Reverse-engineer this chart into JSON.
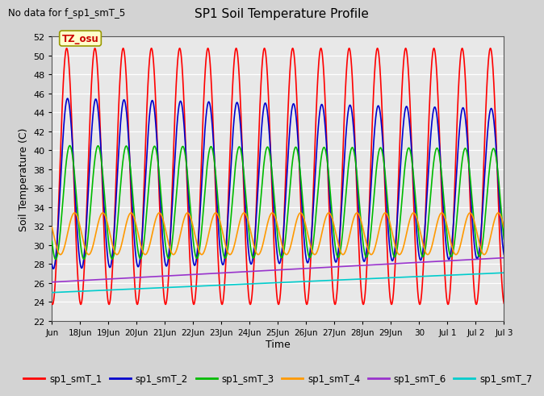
{
  "title": "SP1 Soil Temperature Profile",
  "xlabel": "Time",
  "ylabel": "Soil Temperature (C)",
  "ylim": [
    22,
    52
  ],
  "yticks": [
    22,
    24,
    26,
    28,
    30,
    32,
    34,
    36,
    38,
    40,
    42,
    44,
    46,
    48,
    50,
    52
  ],
  "no_data_text": "No data for f_sp1_smT_5",
  "tz_label": "TZ_osu",
  "background_color": "#d3d3d3",
  "plot_bg_color": "#e8e8e8",
  "series": [
    {
      "name": "sp1_smT_1",
      "color": "#ff0000",
      "mean": 37.25,
      "amp": 13.5,
      "phase": 0.27,
      "trend": 0.0,
      "amp_trend": 0.0
    },
    {
      "name": "sp1_smT_2",
      "color": "#0000cc",
      "mean": 36.5,
      "amp": 9.0,
      "phase": 0.3,
      "trend": 0.0,
      "amp_trend": -0.07
    },
    {
      "name": "sp1_smT_3",
      "color": "#00bb00",
      "mean": 34.5,
      "amp": 6.0,
      "phase": 0.38,
      "trend": 0.0,
      "amp_trend": -0.02
    },
    {
      "name": "sp1_smT_4",
      "color": "#ff9900",
      "mean": 31.2,
      "amp": 2.2,
      "phase": 0.55,
      "trend": 0.0,
      "amp_trend": 0.0
    },
    {
      "name": "sp1_smT_6",
      "color": "#9933cc",
      "mean": 26.1,
      "amp": 0.0,
      "phase": 0.0,
      "trend": 0.16,
      "amp_trend": 0.0
    },
    {
      "name": "sp1_smT_7",
      "color": "#00cccc",
      "mean": 25.0,
      "amp": 0.0,
      "phase": 0.0,
      "trend": 0.13,
      "amp_trend": 0.0
    }
  ],
  "x_end": 16.0,
  "xtick_labels": [
    "Jun",
    "18Jun",
    "19Jun",
    "20Jun",
    "21Jun",
    "22Jun",
    "23Jun",
    "24Jun",
    "25Jun",
    "26Jun",
    "27Jun",
    "28Jun",
    "29Jun",
    "30",
    "Jul 1",
    "Jul 2",
    "Jul 3"
  ],
  "xtick_positions": [
    0,
    1,
    2,
    3,
    4,
    5,
    6,
    7,
    8,
    9,
    10,
    11,
    12,
    13,
    14,
    15,
    16
  ],
  "legend_colors": [
    "#ff0000",
    "#0000cc",
    "#00bb00",
    "#ff9900",
    "#9933cc",
    "#00cccc"
  ],
  "legend_labels": [
    "sp1_smT_1",
    "sp1_smT_2",
    "sp1_smT_3",
    "sp1_smT_4",
    "sp1_smT_6",
    "sp1_smT_7"
  ]
}
